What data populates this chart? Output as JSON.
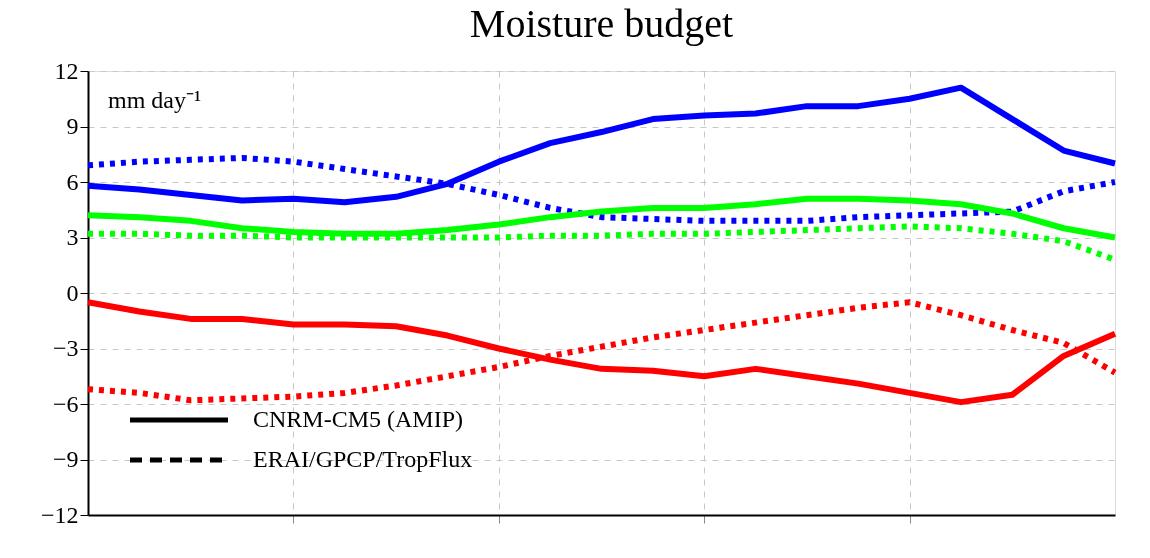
{
  "chart_data": {
    "type": "line",
    "title": "Moisture budget",
    "categories": [
      null,
      null,
      null,
      null,
      null,
      null,
      null,
      null,
      null,
      null,
      null,
      null,
      null,
      null,
      null,
      null,
      null,
      null,
      null,
      null,
      null
    ],
    "series": [
      {
        "color": "#0000ff",
        "line_style": "solid",
        "values": [
          5.8,
          5.6,
          5.3,
          5.0,
          5.1,
          4.9,
          5.2,
          5.9,
          7.1,
          8.1,
          8.7,
          9.4,
          9.6,
          9.7,
          10.1,
          10.1,
          10.5,
          11.1,
          9.4,
          7.7,
          7.0
        ]
      },
      {
        "color": "#0000ff",
        "line_style": "dotted",
        "values": [
          6.9,
          7.1,
          7.2,
          7.3,
          7.1,
          6.7,
          6.3,
          5.9,
          5.3,
          4.6,
          4.1,
          4.0,
          3.9,
          3.9,
          3.9,
          4.1,
          4.2,
          4.3,
          4.4,
          5.5,
          6.0
        ]
      },
      {
        "color": "#00ff00",
        "line_style": "solid",
        "values": [
          4.2,
          4.1,
          3.9,
          3.5,
          3.3,
          3.2,
          3.2,
          3.4,
          3.7,
          4.1,
          4.4,
          4.6,
          4.6,
          4.8,
          5.1,
          5.1,
          5.0,
          4.8,
          4.3,
          3.5,
          3.0
        ]
      },
      {
        "color": "#00ff00",
        "line_style": "dotted",
        "values": [
          3.2,
          3.2,
          3.1,
          3.1,
          3.0,
          3.0,
          3.0,
          3.0,
          3.0,
          3.1,
          3.1,
          3.2,
          3.2,
          3.3,
          3.4,
          3.5,
          3.6,
          3.5,
          3.2,
          2.8,
          1.8
        ]
      },
      {
        "color": "#ff0000",
        "line_style": "solid",
        "values": [
          -0.5,
          -1.0,
          -1.4,
          -1.4,
          -1.7,
          -1.7,
          -1.8,
          -2.3,
          -3.0,
          -3.6,
          -4.1,
          -4.2,
          -4.5,
          -4.1,
          -4.5,
          -4.9,
          -5.4,
          -5.9,
          -5.5,
          -3.4,
          -2.2
        ]
      },
      {
        "color": "#ff0000",
        "line_style": "dotted",
        "values": [
          -5.2,
          -5.4,
          -5.8,
          -5.7,
          -5.6,
          -5.4,
          -5.0,
          -4.5,
          -4.0,
          -3.4,
          -2.9,
          -2.4,
          -2.0,
          -1.6,
          -1.2,
          -0.8,
          -0.5,
          -1.2,
          -2.0,
          -2.7,
          -4.3
        ]
      }
    ],
    "ylim": [
      -12,
      12
    ],
    "yticks": [
      -12,
      -9,
      -6,
      -3,
      0,
      3,
      6,
      9,
      12
    ],
    "annotations": [
      "mm day⁻¹",
      "CNRM-CM5 (AMIP)",
      "ERAI/GPCP/TropFlux"
    ],
    "grid": true,
    "tick_labels": "y"
  }
}
